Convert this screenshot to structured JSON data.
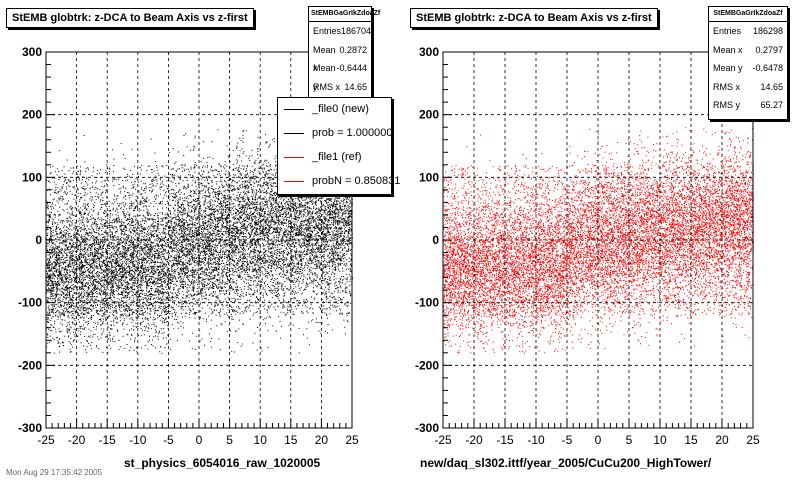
{
  "chart_data": [
    {
      "type": "scatter",
      "title": "StEMB globtrk: z-DCA to Beam Axis vs z-first",
      "xlabel": "st_physics_6054016_raw_1020005",
      "ylabel": "",
      "xlim": [
        -25,
        25
      ],
      "ylim": [
        -300,
        300
      ],
      "x_ticks": [
        "-25",
        "-20",
        "-15",
        "-10",
        "-5",
        "0",
        "5",
        "10",
        "15",
        "20",
        "25"
      ],
      "y_ticks": [
        "-300",
        "-200",
        "-100",
        "0",
        "100",
        "200",
        "300"
      ],
      "grid": true,
      "marker_color": "#000000",
      "stats": {
        "name": "StEMBGaGrIkZdoaZf",
        "rows": [
          {
            "label": "Entries",
            "value": "186704"
          },
          {
            "label": "Mean x",
            "value": "0.2872"
          },
          {
            "label": "Mean y",
            "value": "-0.6444"
          },
          {
            "label": "RMS x",
            "value": "14.65"
          }
        ]
      },
      "legend": {
        "placement": "top-right",
        "entries": [
          {
            "label": "_file0 (new)",
            "color": "#000000"
          },
          {
            "label": "prob = 1.000000",
            "color": "#000000"
          },
          {
            "label": "_file1 (ref)",
            "color": "#ff0000"
          },
          {
            "label": "probN = 0.850831",
            "color": "#ff0000"
          }
        ]
      }
    },
    {
      "type": "scatter",
      "title": "StEMB globtrk: z-DCA to Beam Axis vs z-first",
      "xlabel": "new/daq_sl302.ittf/year_2005/CuCu200_HighTower/",
      "ylabel": "",
      "xlim": [
        -25,
        25
      ],
      "ylim": [
        -300,
        300
      ],
      "x_ticks": [
        "-25",
        "-20",
        "-15",
        "-10",
        "-5",
        "0",
        "5",
        "10",
        "15",
        "20",
        "25"
      ],
      "y_ticks": [
        "-300",
        "-200",
        "-100",
        "0",
        "100",
        "200",
        "300"
      ],
      "grid": true,
      "marker_color": "#ff0000",
      "stats": {
        "name": "StEMBGaGrIkZdoaZf",
        "rows": [
          {
            "label": "Entries",
            "value": "186298"
          },
          {
            "label": "Mean x",
            "value": "0.2797"
          },
          {
            "label": "Mean y",
            "value": "-0.6478"
          },
          {
            "label": "RMS x",
            "value": "14.65"
          },
          {
            "label": "RMS y",
            "value": "65.27"
          }
        ]
      }
    }
  ],
  "footer": "Mon Aug 29 17:35:42 2005"
}
